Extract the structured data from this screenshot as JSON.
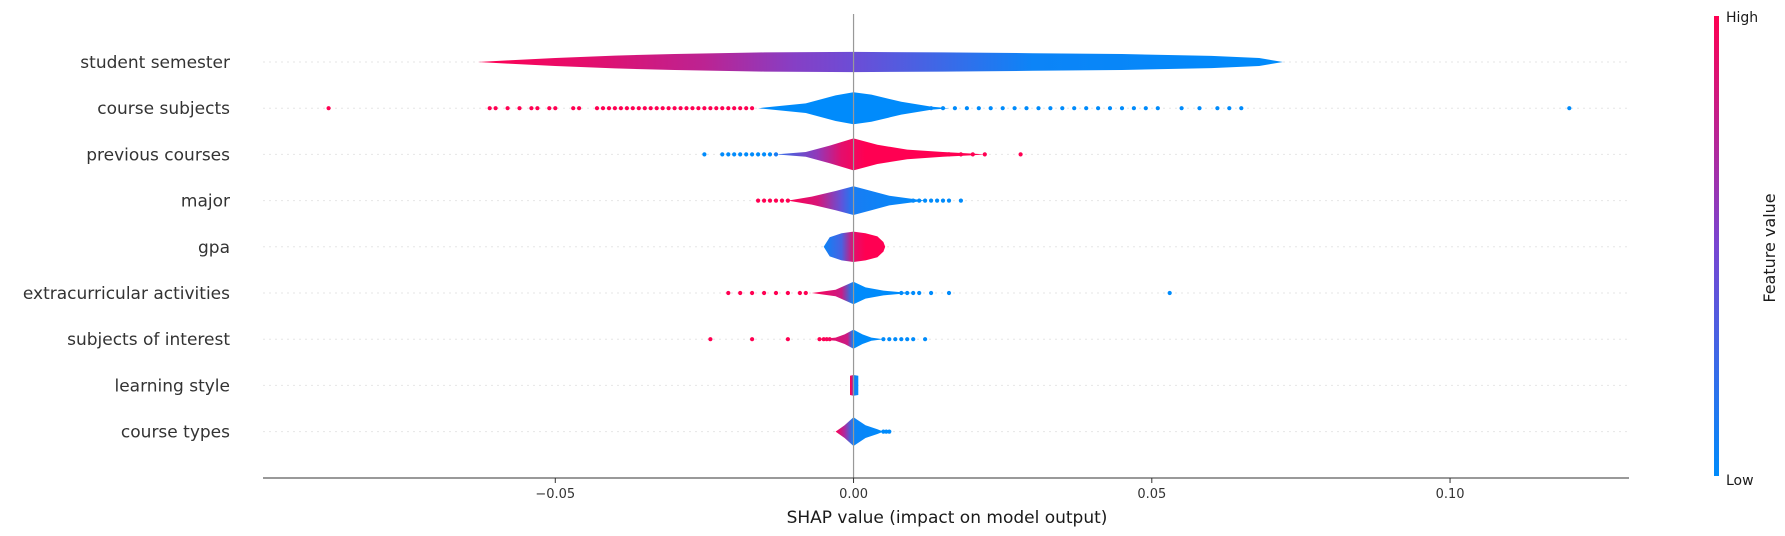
{
  "chart_data": {
    "type": "beeswarm-violin",
    "xlabel": "SHAP value (impact on model output)",
    "xlim": [
      -0.099,
      0.13
    ],
    "xticks": [
      -0.05,
      0.0,
      0.05,
      0.1
    ],
    "xtick_labels": [
      "−0.05",
      "0.00",
      "0.05",
      "0.10"
    ],
    "zero_line": 0.0,
    "colorbar": {
      "title": "Feature value",
      "high_label": "High",
      "low_label": "Low",
      "high_color": "#ff0052",
      "low_color": "#008bfb"
    },
    "features": [
      {
        "name": "student semester",
        "violin": [
          [
            -0.063,
            0.0
          ],
          [
            -0.058,
            0.1
          ],
          [
            -0.05,
            0.25
          ],
          [
            -0.04,
            0.4
          ],
          [
            -0.03,
            0.5
          ],
          [
            -0.015,
            0.6
          ],
          [
            0.0,
            0.63
          ],
          [
            0.015,
            0.6
          ],
          [
            0.03,
            0.55
          ],
          [
            0.045,
            0.5
          ],
          [
            0.06,
            0.38
          ],
          [
            0.068,
            0.25
          ],
          [
            0.072,
            0.0
          ]
        ],
        "color_stops": [
          [
            -0.063,
            1.0
          ],
          [
            -0.045,
            0.9
          ],
          [
            -0.025,
            0.75
          ],
          [
            -0.01,
            0.55
          ],
          [
            0.0,
            0.45
          ],
          [
            0.015,
            0.25
          ],
          [
            0.03,
            0.05
          ],
          [
            0.072,
            0.0
          ]
        ],
        "points": []
      },
      {
        "name": "course subjects",
        "violin": [
          [
            -0.016,
            0.0
          ],
          [
            -0.008,
            0.3
          ],
          [
            -0.003,
            0.8
          ],
          [
            0.0,
            1.0
          ],
          [
            0.003,
            0.85
          ],
          [
            0.008,
            0.4
          ],
          [
            0.013,
            0.1
          ],
          [
            0.016,
            0.0
          ]
        ],
        "color_stops": [
          [
            -0.016,
            0.0
          ],
          [
            0.0,
            0.0
          ],
          [
            0.016,
            0.0
          ]
        ],
        "points": [
          [
            -0.088,
            1
          ],
          [
            -0.061,
            1
          ],
          [
            -0.06,
            1
          ],
          [
            -0.058,
            1
          ],
          [
            -0.056,
            1
          ],
          [
            -0.054,
            1
          ],
          [
            -0.053,
            1
          ],
          [
            -0.051,
            1
          ],
          [
            -0.05,
            1
          ],
          [
            -0.047,
            1
          ],
          [
            -0.046,
            1
          ],
          [
            -0.043,
            1
          ],
          [
            -0.042,
            1
          ],
          [
            -0.041,
            1
          ],
          [
            -0.04,
            1
          ],
          [
            -0.039,
            1
          ],
          [
            -0.038,
            1
          ],
          [
            -0.037,
            1
          ],
          [
            -0.036,
            1
          ],
          [
            -0.035,
            1
          ],
          [
            -0.034,
            1
          ],
          [
            -0.033,
            1
          ],
          [
            -0.032,
            1
          ],
          [
            -0.031,
            1
          ],
          [
            -0.03,
            1
          ],
          [
            -0.029,
            1
          ],
          [
            -0.028,
            1
          ],
          [
            -0.027,
            1
          ],
          [
            -0.026,
            1
          ],
          [
            -0.025,
            1
          ],
          [
            -0.024,
            1
          ],
          [
            -0.023,
            1
          ],
          [
            -0.022,
            1
          ],
          [
            -0.021,
            1
          ],
          [
            -0.02,
            1
          ],
          [
            -0.019,
            1
          ],
          [
            -0.018,
            1
          ],
          [
            -0.017,
            1
          ],
          [
            0.013,
            0.1
          ],
          [
            0.015,
            0
          ],
          [
            0.017,
            0
          ],
          [
            0.019,
            0
          ],
          [
            0.021,
            0
          ],
          [
            0.023,
            0
          ],
          [
            0.025,
            0
          ],
          [
            0.027,
            0
          ],
          [
            0.029,
            0
          ],
          [
            0.031,
            0
          ],
          [
            0.033,
            0
          ],
          [
            0.035,
            0
          ],
          [
            0.037,
            0
          ],
          [
            0.039,
            0
          ],
          [
            0.041,
            0
          ],
          [
            0.043,
            0
          ],
          [
            0.045,
            0
          ],
          [
            0.047,
            0
          ],
          [
            0.049,
            0
          ],
          [
            0.051,
            0
          ],
          [
            0.055,
            0
          ],
          [
            0.058,
            0
          ],
          [
            0.061,
            0
          ],
          [
            0.063,
            0
          ],
          [
            0.065,
            0
          ],
          [
            0.12,
            0
          ]
        ]
      },
      {
        "name": "previous courses",
        "violin": [
          [
            -0.013,
            0.0
          ],
          [
            -0.008,
            0.15
          ],
          [
            -0.004,
            0.55
          ],
          [
            0.0,
            1.0
          ],
          [
            0.004,
            0.6
          ],
          [
            0.009,
            0.3
          ],
          [
            0.015,
            0.15
          ],
          [
            0.02,
            0.05
          ],
          [
            0.022,
            0.0
          ]
        ],
        "color_stops": [
          [
            -0.013,
            0.2
          ],
          [
            -0.006,
            0.6
          ],
          [
            -0.002,
            0.9
          ],
          [
            0.002,
            1.0
          ],
          [
            0.022,
            1.0
          ]
        ],
        "points": [
          [
            -0.025,
            0
          ],
          [
            -0.022,
            0
          ],
          [
            -0.021,
            0
          ],
          [
            -0.02,
            0
          ],
          [
            -0.019,
            0
          ],
          [
            -0.018,
            0
          ],
          [
            -0.017,
            0
          ],
          [
            -0.016,
            0
          ],
          [
            -0.015,
            0
          ],
          [
            -0.014,
            0
          ],
          [
            -0.013,
            0.1
          ],
          [
            0.014,
            1
          ],
          [
            0.016,
            1
          ],
          [
            0.018,
            1
          ],
          [
            0.02,
            1
          ],
          [
            0.022,
            1
          ],
          [
            0.028,
            1
          ]
        ]
      },
      {
        "name": "major",
        "violin": [
          [
            -0.011,
            0.0
          ],
          [
            -0.007,
            0.25
          ],
          [
            -0.003,
            0.6
          ],
          [
            0.0,
            0.9
          ],
          [
            0.003,
            0.6
          ],
          [
            0.006,
            0.3
          ],
          [
            0.01,
            0.1
          ],
          [
            0.012,
            0.0
          ]
        ],
        "color_stops": [
          [
            -0.011,
            1.0
          ],
          [
            -0.006,
            0.85
          ],
          [
            -0.002,
            0.4
          ],
          [
            0.0,
            0.1
          ],
          [
            0.012,
            0.0
          ]
        ],
        "points": [
          [
            -0.016,
            1
          ],
          [
            -0.015,
            1
          ],
          [
            -0.014,
            1
          ],
          [
            -0.013,
            1
          ],
          [
            -0.012,
            1
          ],
          [
            -0.011,
            1
          ],
          [
            0.009,
            0
          ],
          [
            0.01,
            0
          ],
          [
            0.011,
            0
          ],
          [
            0.012,
            0
          ],
          [
            0.013,
            0
          ],
          [
            0.014,
            0
          ],
          [
            0.015,
            0
          ],
          [
            0.016,
            0
          ],
          [
            0.018,
            0
          ]
        ]
      },
      {
        "name": "gpa",
        "violin": [
          [
            -0.005,
            0.0
          ],
          [
            -0.004,
            0.6
          ],
          [
            -0.002,
            0.85
          ],
          [
            0.0,
            0.95
          ],
          [
            0.002,
            0.85
          ],
          [
            0.004,
            0.65
          ],
          [
            0.005,
            0.3
          ],
          [
            0.0053,
            0.0
          ]
        ],
        "color_stops": [
          [
            -0.005,
            0.05
          ],
          [
            -0.002,
            0.3
          ],
          [
            0.0,
            0.9
          ],
          [
            0.002,
            1.0
          ],
          [
            0.0053,
            1.0
          ]
        ],
        "points": []
      },
      {
        "name": "extracurricular activities",
        "violin": [
          [
            -0.007,
            0.0
          ],
          [
            -0.003,
            0.2
          ],
          [
            0.0,
            0.7
          ],
          [
            0.002,
            0.35
          ],
          [
            0.005,
            0.15
          ],
          [
            0.008,
            0.05
          ],
          [
            0.01,
            0.0
          ]
        ],
        "color_stops": [
          [
            -0.007,
            1.0
          ],
          [
            -0.002,
            0.8
          ],
          [
            0.0,
            0.0
          ],
          [
            0.01,
            0.0
          ]
        ],
        "points": [
          [
            -0.021,
            1
          ],
          [
            -0.019,
            1
          ],
          [
            -0.017,
            1
          ],
          [
            -0.015,
            1
          ],
          [
            -0.013,
            1
          ],
          [
            -0.011,
            1
          ],
          [
            -0.009,
            1
          ],
          [
            -0.008,
            1
          ],
          [
            0.008,
            0
          ],
          [
            0.009,
            0
          ],
          [
            0.01,
            0
          ],
          [
            0.011,
            0
          ],
          [
            0.013,
            0
          ],
          [
            0.016,
            0
          ],
          [
            0.053,
            0
          ]
        ]
      },
      {
        "name": "subjects of interest",
        "violin": [
          [
            -0.006,
            0.0
          ],
          [
            -0.003,
            0.1
          ],
          [
            -0.0015,
            0.3
          ],
          [
            0.0,
            0.6
          ],
          [
            0.0015,
            0.3
          ],
          [
            0.003,
            0.1
          ],
          [
            0.005,
            0.0
          ]
        ],
        "color_stops": [
          [
            -0.006,
            1.0
          ],
          [
            -0.001,
            0.8
          ],
          [
            0.0,
            0.0
          ],
          [
            0.005,
            0.0
          ]
        ],
        "points": [
          [
            -0.024,
            1
          ],
          [
            -0.017,
            1
          ],
          [
            -0.011,
            1
          ],
          [
            -0.0057,
            1
          ],
          [
            -0.005,
            1
          ],
          [
            -0.0045,
            1
          ],
          [
            -0.004,
            1
          ],
          [
            0.005,
            0
          ],
          [
            0.006,
            0
          ],
          [
            0.007,
            0
          ],
          [
            0.008,
            0
          ],
          [
            0.009,
            0
          ],
          [
            0.01,
            0
          ],
          [
            0.012,
            0
          ]
        ]
      },
      {
        "name": "learning style",
        "violin": [
          [
            -0.0006,
            0.0
          ],
          [
            -0.0006,
            0.6
          ],
          [
            0.0,
            0.65
          ],
          [
            0.0008,
            0.6
          ],
          [
            0.0008,
            0.0
          ]
        ],
        "color_stops": [
          [
            -0.0006,
            1.0
          ],
          [
            -0.0003,
            0.9
          ],
          [
            0.0001,
            0.1
          ],
          [
            0.0008,
            0.0
          ]
        ],
        "points": []
      },
      {
        "name": "course types",
        "violin": [
          [
            -0.003,
            0.0
          ],
          [
            -0.0015,
            0.4
          ],
          [
            0.0,
            0.9
          ],
          [
            0.002,
            0.4
          ],
          [
            0.004,
            0.15
          ],
          [
            0.005,
            0.0
          ]
        ],
        "color_stops": [
          [
            -0.003,
            1.0
          ],
          [
            -0.0015,
            0.7
          ],
          [
            0.0,
            0.05
          ],
          [
            0.005,
            0.0
          ]
        ],
        "points": [
          [
            0.005,
            0
          ],
          [
            0.0055,
            0
          ],
          [
            0.006,
            0
          ]
        ]
      }
    ]
  }
}
